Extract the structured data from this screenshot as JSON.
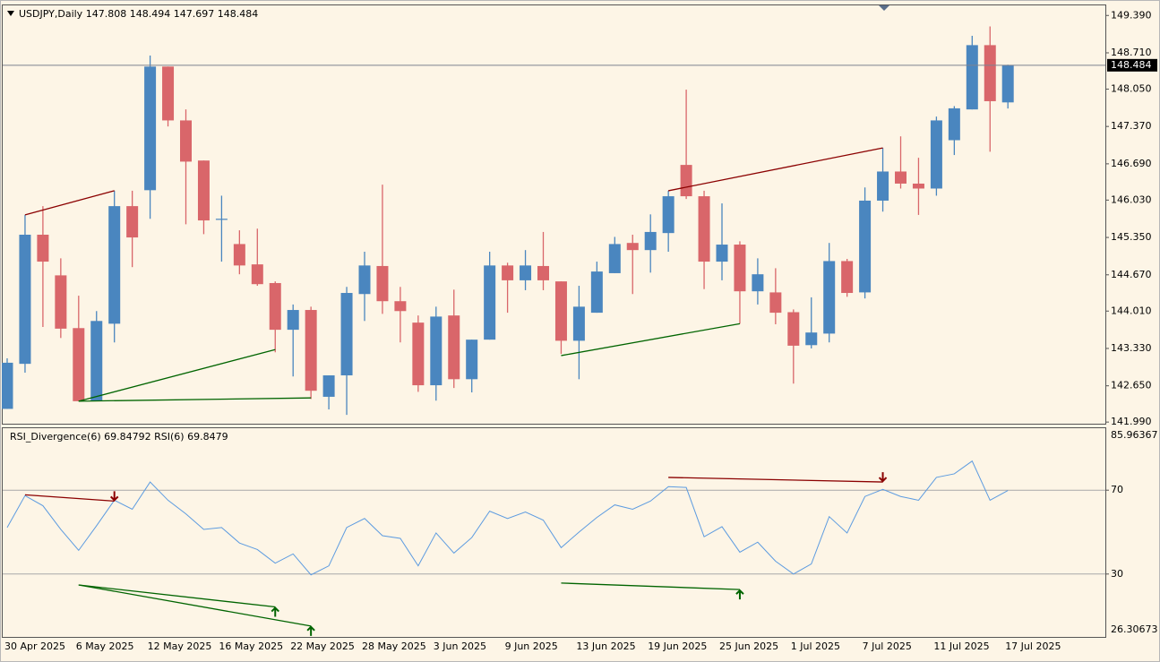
{
  "chart_data": [
    {
      "type": "candlestick",
      "title": "USDJPY,Daily",
      "categories": [
        "30 Apr 2025",
        null,
        null,
        null,
        "6 May 2025",
        null,
        null,
        null,
        "12 May 2025",
        null,
        null,
        null,
        "16 May 2025",
        null,
        null,
        null,
        "22 May 2025",
        null,
        null,
        null,
        "28 May 2025",
        null,
        null,
        null,
        "3 Jun 2025",
        null,
        null,
        null,
        "9 Jun 2025",
        null,
        null,
        null,
        "13 Jun 2025",
        null,
        null,
        null,
        "19 Jun 2025",
        null,
        null,
        null,
        "25 Jun 2025",
        null,
        null,
        null,
        "1 Jul 2025",
        null,
        null,
        null,
        "7 Jul 2025",
        null,
        null,
        null,
        "11 Jul 2025",
        null,
        null,
        null,
        "17 Jul 2025"
      ],
      "open": [
        142.23,
        143.05,
        145.4,
        144.66,
        143.7,
        142.38,
        143.78,
        145.92,
        146.21,
        148.46,
        147.48,
        146.75,
        145.67,
        145.23,
        144.86,
        144.52,
        143.67,
        144.03,
        142.45,
        142.84,
        144.32,
        144.83,
        144.19,
        143.8,
        142.66,
        143.93,
        142.77,
        143.49,
        144.84,
        144.57,
        144.83,
        144.55,
        143.47,
        143.98,
        144.7,
        145.25,
        145.12,
        145.43,
        146.67,
        146.1,
        144.91,
        145.22,
        144.37,
        144.35,
        143.99,
        143.39,
        143.6,
        144.92,
        144.35,
        146.02,
        146.55,
        146.33,
        146.24,
        147.12,
        147.68,
        148.85,
        147.808
      ],
      "high": [
        143.15,
        145.76,
        145.92,
        144.97,
        144.29,
        144.01,
        146.2,
        146.2,
        148.66,
        148.46,
        147.68,
        146.75,
        146.11,
        145.48,
        145.51,
        144.55,
        144.13,
        144.09,
        142.84,
        144.45,
        145.09,
        146.31,
        144.45,
        143.93,
        144.09,
        144.4,
        143.49,
        145.09,
        144.89,
        145.12,
        145.45,
        144.55,
        144.47,
        144.91,
        145.36,
        145.4,
        145.77,
        146.2,
        148.04,
        146.2,
        145.97,
        145.28,
        144.97,
        144.79,
        144.04,
        144.26,
        145.25,
        144.96,
        146.26,
        146.98,
        147.19,
        146.8,
        147.55,
        147.74,
        149.02,
        149.19,
        148.494
      ],
      "low": [
        142.23,
        142.89,
        143.72,
        143.52,
        142.37,
        142.37,
        143.44,
        144.81,
        145.69,
        147.37,
        145.59,
        145.41,
        144.91,
        144.68,
        144.47,
        143.26,
        142.82,
        142.41,
        142.22,
        142.12,
        143.83,
        143.96,
        143.44,
        142.54,
        142.38,
        142.61,
        142.53,
        143.49,
        143.98,
        144.39,
        144.39,
        143.23,
        142.77,
        143.98,
        144.7,
        144.32,
        144.71,
        145.09,
        146.05,
        144.41,
        144.57,
        143.78,
        144.13,
        143.77,
        142.69,
        143.33,
        143.44,
        144.27,
        144.24,
        145.82,
        146.24,
        145.76,
        146.11,
        146.85,
        147.68,
        146.91,
        147.697
      ],
      "close": [
        143.07,
        145.4,
        144.91,
        143.69,
        142.37,
        143.83,
        145.92,
        145.35,
        148.46,
        147.48,
        146.73,
        145.66,
        145.69,
        144.84,
        144.5,
        143.67,
        144.03,
        142.56,
        142.84,
        144.34,
        144.84,
        144.19,
        144.01,
        142.66,
        143.91,
        142.77,
        143.49,
        144.84,
        144.57,
        144.84,
        144.57,
        143.47,
        144.09,
        144.73,
        145.23,
        145.12,
        145.45,
        146.1,
        146.1,
        144.91,
        145.22,
        144.37,
        144.68,
        143.98,
        143.38,
        143.62,
        144.92,
        144.34,
        146.02,
        146.55,
        146.33,
        146.24,
        147.48,
        147.7,
        148.85,
        147.83,
        148.484
      ],
      "up_color": "#4a86bf",
      "down_color": "#d9666a",
      "ylim": [
        141.96,
        149.59
      ],
      "yticks": [
        {
          "value": 149.39,
          "label": "149.390"
        },
        {
          "value": 148.71,
          "label": "148.710"
        },
        {
          "value": 148.05,
          "label": "148.050"
        },
        {
          "value": 147.37,
          "label": "147.370"
        },
        {
          "value": 146.69,
          "label": "146.690"
        },
        {
          "value": 146.03,
          "label": "146.030"
        },
        {
          "value": 145.35,
          "label": "145.350"
        },
        {
          "value": 144.67,
          "label": "144.670"
        },
        {
          "value": 144.01,
          "label": "144.010"
        },
        {
          "value": 143.33,
          "label": "143.330"
        },
        {
          "value": 142.65,
          "label": "142.650"
        },
        {
          "value": 141.99,
          "label": "141.990"
        }
      ],
      "grid": false,
      "divergence_lines": [
        {
          "color": "#8b0000",
          "x": [
            1,
            6
          ],
          "y": [
            145.76,
            146.2
          ]
        },
        {
          "color": "#8b0000",
          "x": [
            37,
            49
          ],
          "y": [
            146.2,
            146.98
          ]
        },
        {
          "color": "#006400",
          "x": [
            4,
            15
          ],
          "y": [
            142.37,
            143.31
          ]
        },
        {
          "color": "#006400",
          "x": [
            4,
            17
          ],
          "y": [
            142.37,
            142.43
          ]
        },
        {
          "color": "#006400",
          "x": [
            31,
            41
          ],
          "y": [
            143.2,
            143.78
          ]
        }
      ]
    },
    {
      "type": "line",
      "title": "RSI_Divergence(6)",
      "indicator_value": 69.84792,
      "series": [
        {
          "name": "RSI(6)",
          "color": "#5c9be0",
          "values": [
            52.2,
            67.4,
            62.6,
            51.3,
            41.3,
            53,
            65.2,
            60.9,
            73.9,
            65.2,
            58.7,
            51.3,
            52.2,
            44.8,
            41.7,
            35.2,
            39.6,
            29.6,
            33.9,
            52.2,
            56.5,
            48.3,
            47,
            33.9,
            49.6,
            40,
            47.4,
            60,
            56.5,
            59.6,
            55.7,
            42.6,
            50,
            57,
            63,
            60.9,
            64.8,
            71.7,
            71.3,
            47.8,
            52.6,
            40.4,
            45.2,
            36.1,
            30,
            34.8,
            57.4,
            49.6,
            67,
            70.4,
            67,
            65.2,
            76.1,
            77.8,
            83.9,
            65.2,
            69.8479
          ]
        }
      ],
      "ylim": [
        0,
        100
      ],
      "yticks": [
        70,
        30
      ],
      "grid": true,
      "max_label": 85.96367,
      "min_label": 26.30673,
      "divergence_lines": [
        {
          "color": "#8b0000",
          "x": [
            1,
            6
          ],
          "y": [
            67.8,
            64.8
          ]
        },
        {
          "color": "#8b0000",
          "x": [
            37,
            49
          ],
          "y": [
            76.1,
            73.9
          ]
        },
        {
          "color": "#006400",
          "x": [
            4,
            15
          ],
          "y": [
            24.8,
            14.3
          ]
        },
        {
          "color": "#006400",
          "x": [
            4,
            17
          ],
          "y": [
            24.8,
            5.2
          ]
        },
        {
          "color": "#006400",
          "x": [
            31,
            41
          ],
          "y": [
            25.7,
            22.6
          ]
        }
      ]
    }
  ]
}
